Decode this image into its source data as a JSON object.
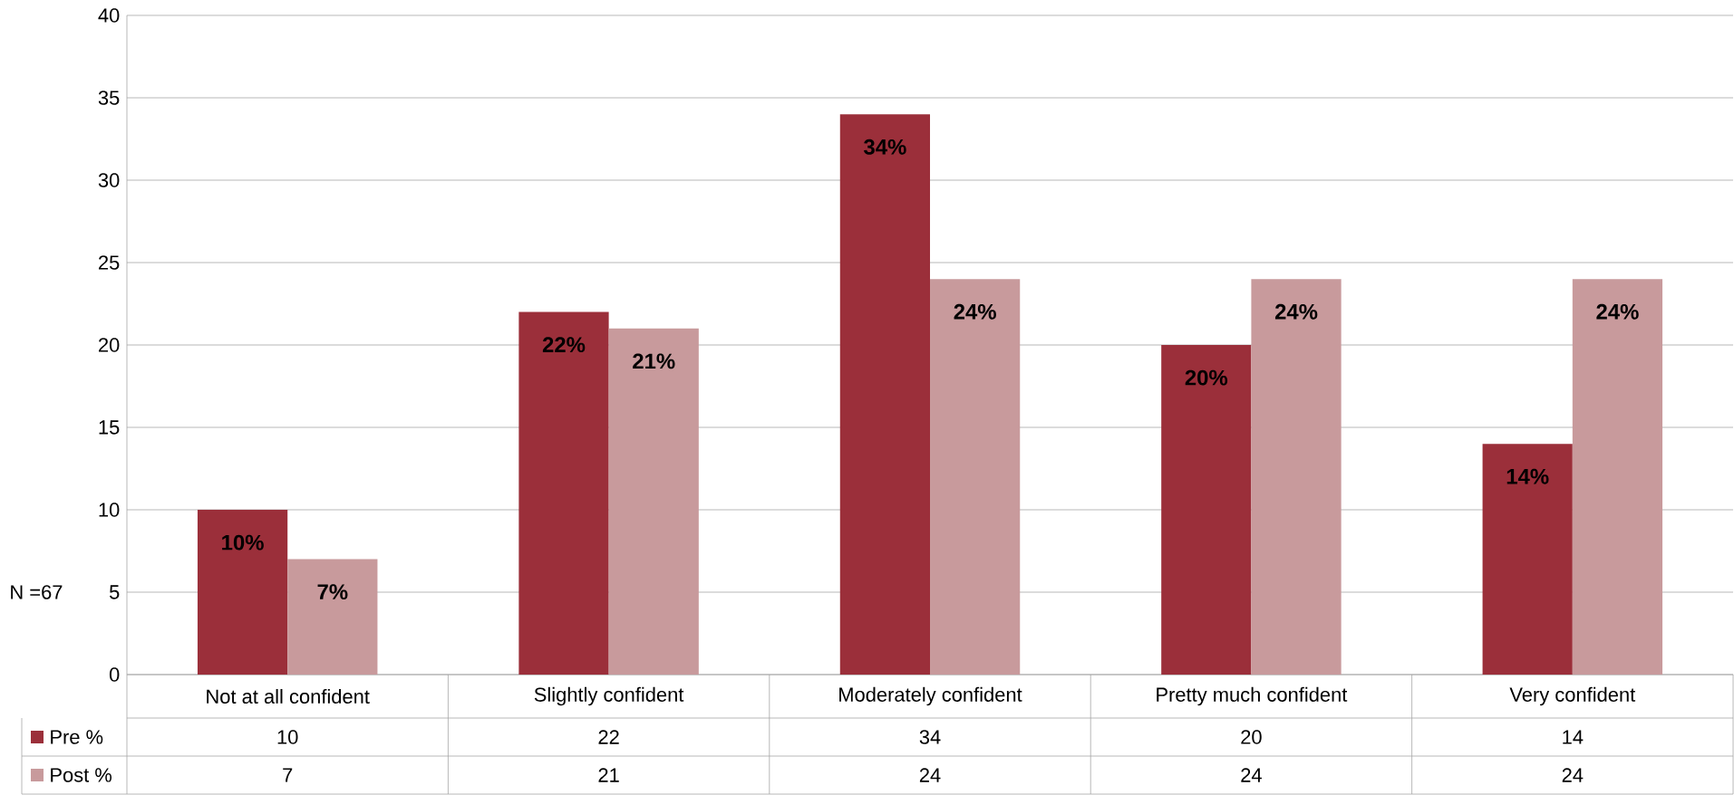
{
  "chart_data": {
    "type": "bar",
    "categories": [
      "Not at all confident",
      "Slightly confident",
      "Moderately confident",
      "Pretty much confident",
      "Very confident"
    ],
    "series": [
      {
        "name": "Pre %",
        "color": "#9b2f3a",
        "values": [
          10,
          22,
          34,
          20,
          14
        ],
        "value_labels": [
          "10",
          "22",
          "34",
          "20",
          "14"
        ]
      },
      {
        "name": "Post %",
        "color": "#c89a9c",
        "values": [
          7,
          21,
          24,
          24,
          24
        ],
        "value_labels": [
          "7",
          "21",
          "24",
          "24",
          "24"
        ]
      }
    ],
    "ylim": [
      0,
      40
    ],
    "yticks": [
      0,
      5,
      10,
      15,
      20,
      25,
      30,
      35,
      40
    ],
    "grid": "y",
    "legend": "bottom",
    "annotations": [
      "N =67",
      {
        "text": "10%",
        "x": "Not at all confident",
        "y": 10
      },
      {
        "text": "7%",
        "x": "Not at all confident",
        "y": 7
      },
      {
        "text": "22%",
        "x": "Slightly confident",
        "y": 22
      },
      {
        "text": "21%",
        "x": "Slightly confident",
        "y": 21
      },
      {
        "text": "34%",
        "x": "Moderately confident",
        "y": 34
      },
      {
        "text": "24%",
        "x": "Moderately confident",
        "y": 24
      },
      {
        "text": "20%",
        "x": "Pretty much confident",
        "y": 20
      },
      {
        "text": "24%",
        "x": "Pretty much confident",
        "y": 24
      },
      {
        "text": "14%",
        "x": "Very confident",
        "y": 14
      },
      {
        "text": "24%",
        "x": "Very confident",
        "y": 24
      }
    ]
  }
}
